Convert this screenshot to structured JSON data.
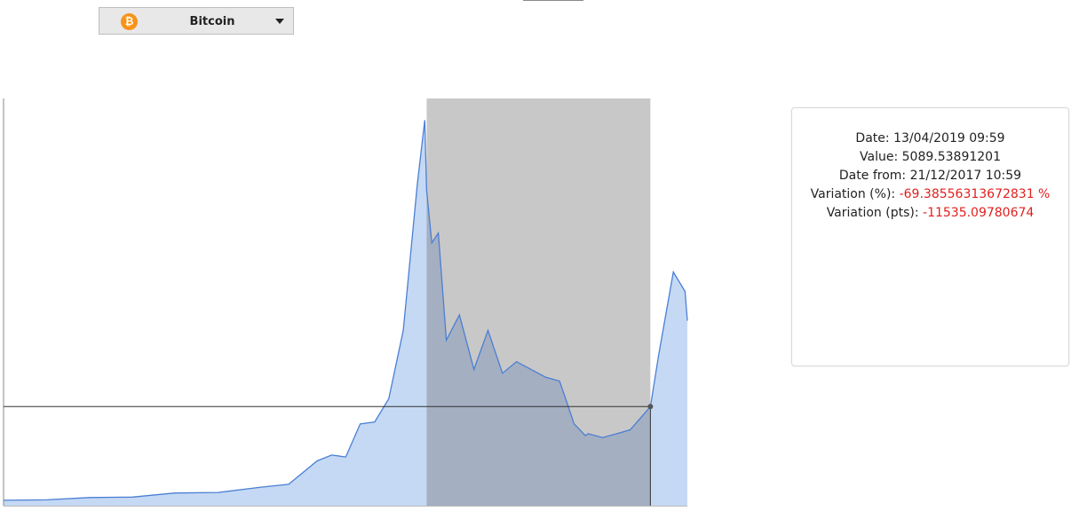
{
  "asset_selector": {
    "label": "Bitcoin",
    "icon": "bitcoin-icon",
    "icon_glyph": "₿",
    "icon_color": "#f7931a"
  },
  "info": {
    "date_label": "Date: ",
    "date": "13/04/2019 09:59",
    "value_label": "Value: ",
    "value": "5089.53891201",
    "from_label": "Date from: ",
    "from": "21/12/2017 10:59",
    "var_pct_label": "Variation (%): ",
    "var_pct": "-69.38556313672831 %",
    "var_pts_label": "Variation (pts): ",
    "var_pts": "-11535.09780674"
  },
  "colors": {
    "line": "#4a7fd4",
    "area": "#c5d9f4",
    "selection": "#c9c8c8",
    "selection_area": "#a4afc1",
    "negative": "#e0201e"
  },
  "chart_data": {
    "type": "area",
    "title": "",
    "xlabel": "",
    "ylabel": "",
    "grid": false,
    "x_range": [
      "2015-07",
      "2019-07"
    ],
    "y_range": [
      0,
      20000
    ],
    "series": [
      {
        "x": [
          "2015-07",
          "2015-10",
          "2016-01",
          "2016-04",
          "2016-07",
          "2016-10",
          "2017-01",
          "2017-03",
          "2017-05",
          "2017-06",
          "2017-07",
          "2017-08",
          "2017-09",
          "2017-10",
          "2017-11",
          "2017-12",
          "2017-12-17",
          "2017-12-21",
          "2018-01",
          "2018-01-15",
          "2018-02",
          "2018-03",
          "2018-04",
          "2018-05",
          "2018-06",
          "2018-07",
          "2018-08",
          "2018-09",
          "2018-10",
          "2018-11",
          "2018-11-25",
          "2018-12",
          "2019-01",
          "2019-02",
          "2019-03",
          "2019-04-13",
          "2019-05",
          "2019-06",
          "2019-06-26",
          "2019-07"
        ],
        "values": [
          280,
          300,
          420,
          440,
          650,
          680,
          950,
          1100,
          2300,
          2600,
          2500,
          4200,
          4300,
          5500,
          9000,
          16500,
          19800,
          16200,
          13500,
          14000,
          8500,
          9800,
          7000,
          9000,
          6800,
          7400,
          7000,
          6600,
          6400,
          4200,
          3600,
          3700,
          3500,
          3700,
          3900,
          5089,
          7800,
          12000,
          11000,
          9500
        ]
      }
    ],
    "selection": {
      "from": "2017-12-21",
      "to": "2019-04-13"
    },
    "reference_value": 5089.53891201
  }
}
